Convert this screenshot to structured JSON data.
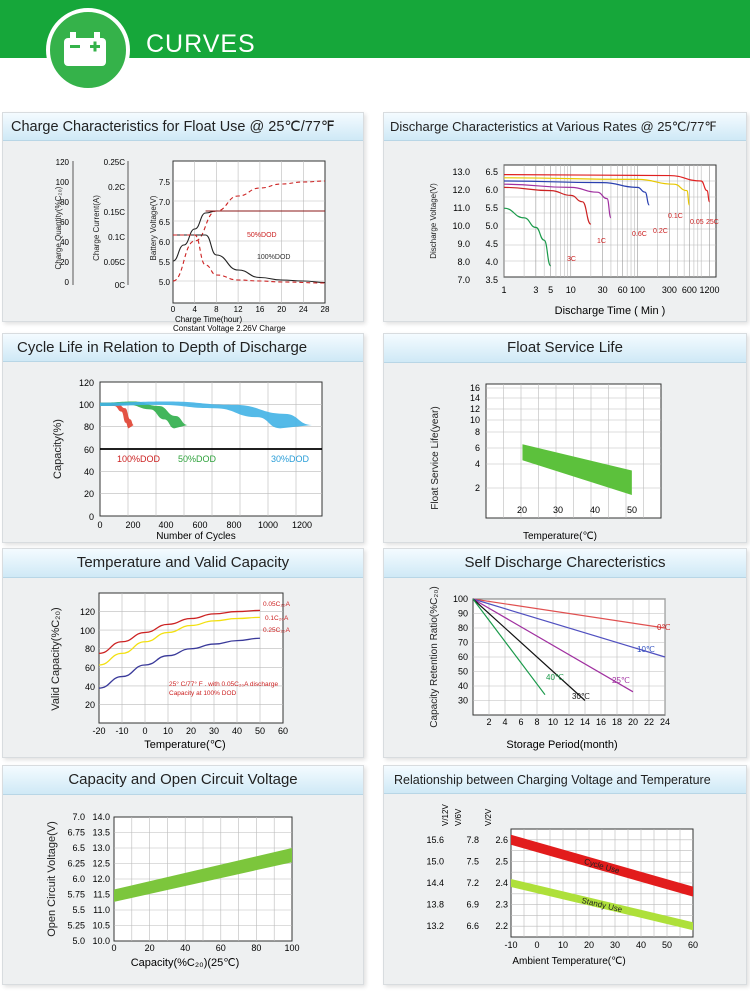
{
  "banner": {
    "title": "CURVES",
    "icon": "battery-icon"
  },
  "panels": {
    "float_charge": {
      "title": "Charge Characteristics for Float Use @ 25℃/77℉",
      "axis_quantity_label": "Charge Quantity(%C₂₀)",
      "axis_current_label": "Charge Current(A)",
      "axis_voltage_label": "Battery Voltage(V)",
      "quantity_ticks": [
        "120",
        "100",
        "80",
        "60",
        "40",
        "20",
        "0"
      ],
      "current_ticks": [
        "0.25C",
        "0.2C",
        "0.15C",
        "0.1C",
        "0.05C",
        "0C"
      ],
      "voltage_ticks": [
        "7.5",
        "7.0",
        "6.5",
        "6.0",
        "5.5",
        "5.0"
      ],
      "x_ticks": [
        "0",
        "4",
        "8",
        "12",
        "16",
        "20",
        "24",
        "28"
      ],
      "xlabel": "Charge Time(hour)",
      "note": "Constant Voltage 2.26V Charge",
      "label_50": "50%DOD",
      "label_100": "100%DOD"
    },
    "discharge_rates": {
      "title": "Discharge Characteristics at Various Rates @ 25℃/77℉",
      "ylabel": "Discharge Voltage(V)",
      "ticks_12v": [
        "13.0",
        "12.0",
        "11.0",
        "10.0",
        "9.0",
        "8.0",
        "7.0"
      ],
      "ticks_6v": [
        "6.5",
        "6.0",
        "5.5",
        "5.0",
        "4.5",
        "4.0",
        "3.5"
      ],
      "x_ticks": [
        "1",
        "3",
        "5",
        "10",
        "30",
        "60",
        "100",
        "300",
        "600",
        "1200"
      ],
      "xlabel": "Discharge Time ( Min )",
      "rate_labels": [
        "3C",
        "1C",
        "0.6C",
        "0.2C",
        "0.1C",
        "0.05",
        "25C"
      ]
    },
    "cycle_life": {
      "title": "Cycle  Life in Relation to Depth of Discharge",
      "ylabel": "Capacity(%)",
      "y_ticks": [
        "120",
        "100",
        "80",
        "60",
        "40",
        "20",
        "0"
      ],
      "x_ticks": [
        "0",
        "200",
        "400",
        "600",
        "800",
        "1000",
        "1200"
      ],
      "xlabel": "Number of Cycles",
      "dod_labels": [
        "100%DOD",
        "50%DOD",
        "30%DOD"
      ]
    },
    "float_life": {
      "title": "Float Service Life",
      "ylabel": "Float Service Life(year)",
      "y_ticks": [
        "16",
        "14",
        "12",
        "10",
        "8",
        "6",
        "4",
        "2"
      ],
      "x_ticks": [
        "20",
        "30",
        "40",
        "50"
      ],
      "xlabel": "Temperature(℃)"
    },
    "temp_capacity": {
      "title": "Temperature and Valid Capacity",
      "ylabel": "Valid Capacity(%C₂₀)",
      "y_ticks": [
        "120",
        "100",
        "80",
        "60",
        "40",
        "20"
      ],
      "x_ticks": [
        "-20",
        "-10",
        "0",
        "10",
        "20",
        "30",
        "40",
        "50",
        "60"
      ],
      "xlabel": "Temperature(℃)",
      "series_labels": [
        "0.05C₂₀A",
        "0.1C₂₀A",
        "0.25C₂₀A"
      ],
      "note_line1": "25° C/77° F . with 0.05C₂₀A discharge",
      "note_line2": "Capacity at 100% DOD"
    },
    "self_discharge": {
      "title": "Self Discharge Charecteristics",
      "ylabel": "Capacity Retention Ratio(%C₂₀)",
      "y_ticks": [
        "100",
        "90",
        "80",
        "70",
        "60",
        "50",
        "40",
        "30"
      ],
      "x_ticks": [
        "2",
        "4",
        "6",
        "8",
        "10",
        "12",
        "14",
        "16",
        "18",
        "20",
        "22",
        "24"
      ],
      "xlabel": "Storage Period(month)",
      "temp_labels": [
        "0℃",
        "10℃",
        "25℃",
        "30℃",
        "40℃"
      ]
    },
    "ocv": {
      "title": "Capacity and Open Circuit Voltage",
      "ylabel": "Open Circuit Voltage(V)",
      "ticks_6v": [
        "7.0",
        "6.75",
        "6.5",
        "6.25",
        "6.0",
        "5.75",
        "5.5",
        "5.25",
        "5.0"
      ],
      "ticks_12v": [
        "14.0",
        "13.5",
        "13.0",
        "12.5",
        "12.0",
        "11.5",
        "11.0",
        "10.5",
        "10.0"
      ],
      "x_ticks": [
        "0",
        "20",
        "40",
        "60",
        "80",
        "100"
      ],
      "xlabel": "Capacity(%C₂₀)(25℃)"
    },
    "charge_voltage_temp": {
      "title": "Relationship between Charging Voltage and Temperature",
      "col_12v": "V/12V",
      "col_6v": "V/6V",
      "col_2v": "V/2V",
      "ticks_12v": [
        "15.6",
        "15.0",
        "14.4",
        "13.8",
        "13.2"
      ],
      "ticks_6v": [
        "7.8",
        "7.5",
        "7.2",
        "6.9",
        "6.6"
      ],
      "ticks_2v": [
        "2.6",
        "2.5",
        "2.4",
        "2.3",
        "2.2"
      ],
      "x_ticks": [
        "-10",
        "0",
        "10",
        "20",
        "30",
        "40",
        "50",
        "60"
      ],
      "xlabel": "Ambient Temperature(℃)",
      "band_labels": [
        "Cycle Use",
        "Standy Use"
      ]
    }
  },
  "chart_data": [
    {
      "type": "line",
      "title": "Charge Characteristics for Float Use @ 25℃/77℉",
      "xlabel": "Charge Time(hour)",
      "series": [
        {
          "name": "Battery Voltage",
          "x": [
            0,
            2,
            4,
            6,
            8,
            12,
            16,
            20,
            24,
            28
          ],
          "y": [
            5.5,
            5.9,
            6.3,
            6.7,
            6.75,
            6.75,
            6.75,
            6.75,
            6.75,
            6.75
          ]
        },
        {
          "name": "Charge Quantity 100%DOD",
          "x": [
            0,
            4,
            8,
            12,
            16,
            20,
            24,
            28
          ],
          "y": [
            0,
            40,
            70,
            85,
            93,
            97,
            99,
            100
          ]
        },
        {
          "name": "Charge Current 100%DOD",
          "x": [
            0,
            6,
            8,
            12,
            16,
            20,
            24,
            28
          ],
          "y": [
            0.1,
            0.1,
            0.06,
            0.03,
            0.015,
            0.01,
            0.008,
            0.005
          ]
        },
        {
          "name": "Charge Current 50%DOD",
          "x": [
            0,
            4,
            6,
            8,
            12,
            16,
            20,
            28
          ],
          "y": [
            0.1,
            0.1,
            0.04,
            0.02,
            0.01,
            0.008,
            0.006,
            0.004
          ]
        }
      ]
    },
    {
      "type": "line",
      "title": "Discharge Characteristics at Various Rates @ 25℃/77℉",
      "xlabel": "Discharge Time ( Min )",
      "ylabel": "Discharge Voltage(V)",
      "x_scale": "log",
      "series": [
        {
          "name": "3C",
          "x": [
            1,
            2,
            3,
            4,
            5
          ],
          "y": [
            5.4,
            5.1,
            4.8,
            4.4,
            3.6
          ]
        },
        {
          "name": "1C",
          "x": [
            1,
            5,
            10,
            15,
            20
          ],
          "y": [
            6.05,
            5.95,
            5.8,
            5.6,
            4.9
          ]
        },
        {
          "name": "0.6C",
          "x": [
            1,
            10,
            25,
            35,
            40
          ],
          "y": [
            6.15,
            6.05,
            5.9,
            5.7,
            5.1
          ]
        },
        {
          "name": "0.2C",
          "x": [
            1,
            30,
            100,
            130,
            150
          ],
          "y": [
            6.25,
            6.2,
            6.05,
            5.9,
            5.5
          ]
        },
        {
          "name": "0.1C",
          "x": [
            1,
            100,
            350,
            550,
            600
          ],
          "y": [
            6.35,
            6.3,
            6.15,
            5.95,
            5.5
          ]
        },
        {
          "name": "0.05C",
          "x": [
            1,
            300,
            900,
            1100,
            1200
          ],
          "y": [
            6.45,
            6.42,
            6.25,
            5.95,
            5.6
          ]
        }
      ]
    },
    {
      "type": "area",
      "title": "Cycle  Life in Relation to Depth of Discharge",
      "xlabel": "Number of Cycles",
      "ylabel": "Capacity(%)",
      "ylim": [
        0,
        120
      ],
      "series": [
        {
          "name": "100%DOD",
          "x": [
            0,
            100,
            150,
            180,
            200
          ],
          "y": [
            100,
            100,
            95,
            85,
            80
          ]
        },
        {
          "name": "50%DOD",
          "x": [
            0,
            200,
            350,
            450,
            520
          ],
          "y": [
            100,
            101,
            97,
            88,
            80
          ]
        },
        {
          "name": "30%DOD",
          "x": [
            0,
            400,
            800,
            1100,
            1260
          ],
          "y": [
            100,
            101,
            98,
            90,
            80
          ]
        }
      ]
    },
    {
      "type": "area",
      "title": "Float Service Life",
      "xlabel": "Temperature(℃)",
      "ylabel": "Float Service Life(year)",
      "series": [
        {
          "name": "upper",
          "x": [
            20,
            50
          ],
          "y": [
            5.5,
            3.0
          ]
        },
        {
          "name": "lower",
          "x": [
            20,
            50
          ],
          "y": [
            3.8,
            1.7
          ]
        }
      ]
    },
    {
      "type": "line",
      "title": "Temperature and Valid Capacity",
      "xlabel": "Temperature(℃)",
      "ylabel": "Valid Capacity(%C₂₀)",
      "series": [
        {
          "name": "0.05C₂₀A",
          "x": [
            -20,
            -10,
            0,
            10,
            20,
            30,
            40,
            50
          ],
          "y": [
            70,
            80,
            88,
            95,
            100,
            104,
            106,
            107
          ]
        },
        {
          "name": "0.1C₂₀A",
          "x": [
            -20,
            -10,
            0,
            10,
            20,
            30,
            40,
            50
          ],
          "y": [
            60,
            70,
            80,
            88,
            94,
            98,
            100,
            101
          ]
        },
        {
          "name": "0.25C₂₀A",
          "x": [
            -20,
            -10,
            0,
            10,
            20,
            30,
            40,
            50
          ],
          "y": [
            40,
            50,
            60,
            68,
            74,
            78,
            81,
            83
          ]
        }
      ]
    },
    {
      "type": "line",
      "title": "Self Discharge Charecteristics",
      "xlabel": "Storage Period(month)",
      "ylabel": "Capacity Retention Ratio(%C₂₀)",
      "series": [
        {
          "name": "0℃",
          "x": [
            0,
            24
          ],
          "y": [
            100,
            80
          ]
        },
        {
          "name": "10℃",
          "x": [
            0,
            24
          ],
          "y": [
            100,
            60
          ]
        },
        {
          "name": "25℃",
          "x": [
            0,
            20
          ],
          "y": [
            100,
            36
          ]
        },
        {
          "name": "30℃",
          "x": [
            0,
            14
          ],
          "y": [
            100,
            30
          ]
        },
        {
          "name": "40℃",
          "x": [
            0,
            9
          ],
          "y": [
            100,
            34
          ]
        }
      ]
    },
    {
      "type": "area",
      "title": "Capacity and Open Circuit Voltage",
      "xlabel": "Capacity(%C₂₀)(25℃)",
      "ylabel": "Open Circuit Voltage(V)",
      "series": [
        {
          "name": "upper",
          "x": [
            0,
            100
          ],
          "y": [
            5.83,
            6.5
          ]
        },
        {
          "name": "lower",
          "x": [
            0,
            100
          ],
          "y": [
            5.76,
            6.4
          ]
        }
      ]
    },
    {
      "type": "area",
      "title": "Relationship between Charging Voltage and Temperature",
      "xlabel": "Ambient Temperature(℃)",
      "series": [
        {
          "name": "Cycle Use",
          "x": [
            -10,
            60
          ],
          "y": [
            2.6,
            2.36
          ]
        },
        {
          "name": "Standy Use",
          "x": [
            -10,
            60
          ],
          "y": [
            2.4,
            2.2
          ]
        }
      ]
    }
  ]
}
